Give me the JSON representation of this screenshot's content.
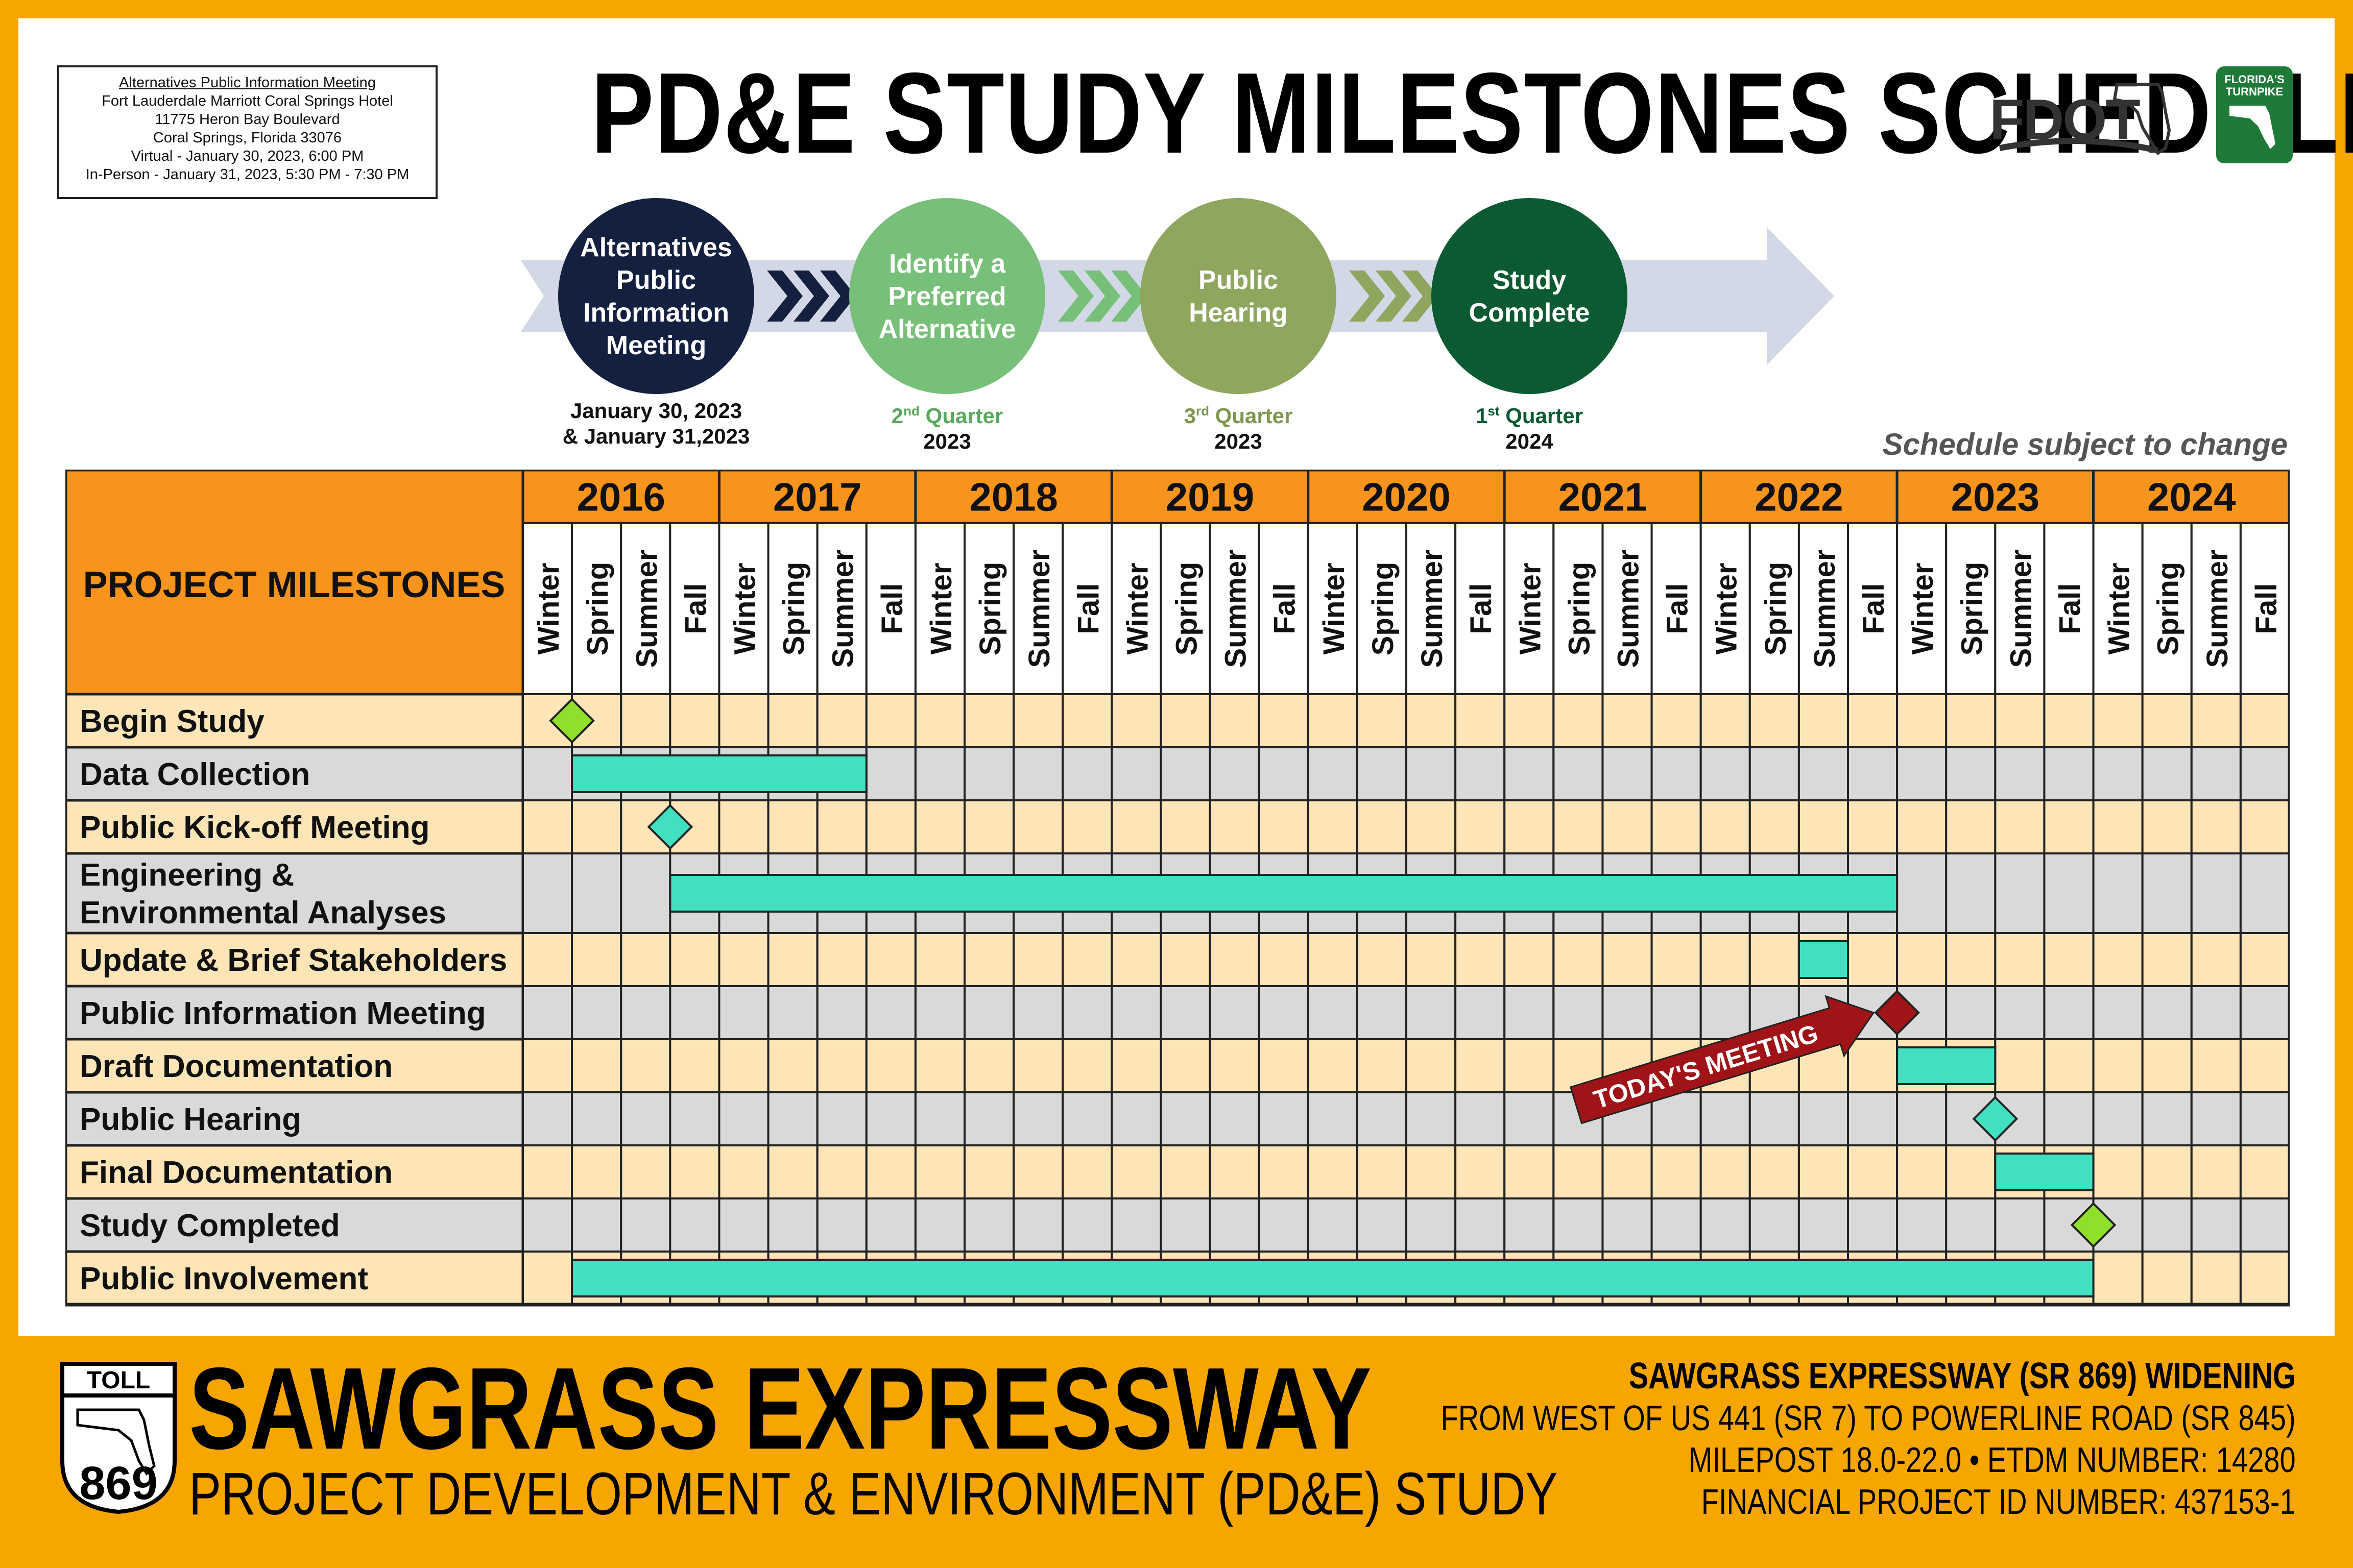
{
  "meeting_box": {
    "title": "Alternatives Public Information Meeting",
    "venue": "Fort Lauderdale Marriott Coral Springs Hotel",
    "address1": "11775 Heron Bay Boulevard",
    "address2": "Coral Springs, Florida 33076",
    "virtual": "Virtual - January 30, 2023, 6:00 PM",
    "in_person": "In-Person - January 31, 2023, 5:30 PM - 7:30 PM"
  },
  "main_title": "PD&E STUDY MILESTONES SCHEDULE",
  "logos": {
    "fdot": "FDOT",
    "turnpike": "FLORIDA'S TURNPIKE"
  },
  "schedule_note": "Schedule subject to change",
  "stages": [
    {
      "label": [
        "Alternatives",
        "Public",
        "Information",
        "Meeting"
      ],
      "color": "#14203f",
      "date_line1": "January 30, 2023",
      "date_line2": "& January 31,2023",
      "date_sup": "",
      "date_color": "#111111"
    },
    {
      "label": [
        "Identify a",
        "Preferred",
        "Alternative"
      ],
      "color": "#78bf7a",
      "date_line1": "2",
      "date_sup": "nd",
      "date_suffix": " Quarter",
      "date_line2": "2023",
      "date_color": "#5aa85e"
    },
    {
      "label": [
        "Public",
        "Hearing"
      ],
      "color": "#8fa65e",
      "date_line1": "3",
      "date_sup": "rd",
      "date_suffix": " Quarter",
      "date_line2": "2023",
      "date_color": "#7d9650"
    },
    {
      "label": [
        "Study",
        "Complete"
      ],
      "color": "#0b5a32",
      "date_line1": "1",
      "date_sup": "st",
      "date_suffix": " Quarter",
      "date_line2": "2024",
      "date_color": "#0b5a32"
    }
  ],
  "chart_data": {
    "type": "table",
    "title": "PD&E STUDY MILESTONES SCHEDULE",
    "header_label": "PROJECT MILESTONES",
    "years": [
      "2016",
      "2017",
      "2018",
      "2019",
      "2020",
      "2021",
      "2022",
      "2023",
      "2024"
    ],
    "seasons": [
      "Winter",
      "Spring",
      "Summer",
      "Fall"
    ],
    "milestones": [
      {
        "name": "Begin Study",
        "type": "milestone",
        "year": "2016",
        "season": "Spring",
        "color": "#8ee02a"
      },
      {
        "name": "Data Collection",
        "type": "bar",
        "start": [
          "2016",
          "Spring"
        ],
        "end": [
          "2017",
          "Fall"
        ]
      },
      {
        "name": "Public Kick-off Meeting",
        "type": "milestone",
        "year": "2016",
        "season": "Fall",
        "color": "#40e0c0"
      },
      {
        "name": "Engineering & Environmental Analyses",
        "lines": [
          "Engineering &",
          "Environmental Analyses"
        ],
        "type": "bar",
        "start": [
          "2016",
          "Fall"
        ],
        "end": [
          "2023",
          "Winter"
        ]
      },
      {
        "name": "Update & Brief Stakeholders",
        "type": "bar",
        "start": [
          "2022",
          "Summer"
        ],
        "end": [
          "2022",
          "Fall"
        ]
      },
      {
        "name": "Public Information Meeting",
        "type": "milestone",
        "year": "2023",
        "season": "Winter",
        "color": "#a01418"
      },
      {
        "name": "Draft Documentation",
        "type": "bar",
        "start": [
          "2023",
          "Winter"
        ],
        "end": [
          "2023",
          "Summer"
        ]
      },
      {
        "name": "Public Hearing",
        "type": "milestone",
        "year": "2023",
        "season": "Summer",
        "color": "#40e0c0"
      },
      {
        "name": "Final Documentation",
        "type": "bar",
        "start": [
          "2023",
          "Summer"
        ],
        "end": [
          "2024",
          "Winter"
        ]
      },
      {
        "name": "Study Completed",
        "type": "milestone",
        "year": "2024",
        "season": "Winter",
        "color": "#8ee02a"
      },
      {
        "name": "Public Involvement",
        "type": "bar",
        "start": [
          "2016",
          "Spring"
        ],
        "end": [
          "2024",
          "Winter"
        ]
      }
    ],
    "callout": "TODAY'S MEETING",
    "colors": {
      "header": "#f7941d",
      "row_odd": "#fde5b8",
      "row_even": "#d9d9d9",
      "bar": "#40e0c0"
    }
  },
  "footer": {
    "title": "SAWGRASS EXPRESSWAY",
    "subtitle": "PROJECT DEVELOPMENT & ENVIRONMENT (PD&E) STUDY",
    "toll": "TOLL",
    "route": "869",
    "right": [
      "SAWGRASS EXPRESSWAY (SR 869) WIDENING",
      "FROM WEST OF US 441 (SR 7) TO POWERLINE ROAD (SR 845)",
      "MILEPOST 18.0-22.0 • ETDM NUMBER: 14280",
      "FINANCIAL PROJECT ID NUMBER: 437153-1"
    ]
  }
}
